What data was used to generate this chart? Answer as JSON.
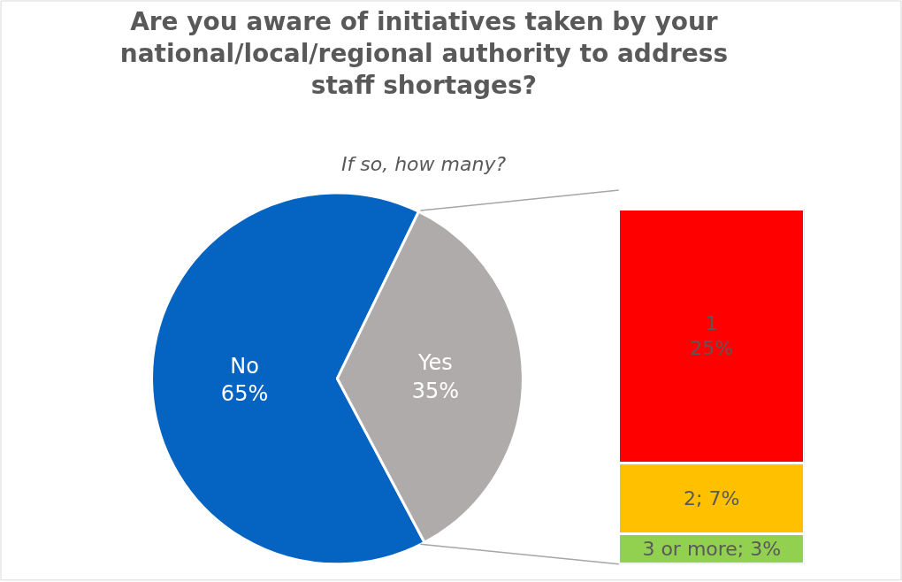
{
  "chart_data": [
    {
      "type": "pie",
      "title": "Are you aware of initiatives taken by your national/local/regional authority to address staff shortages?",
      "subtitle": "If so, how many?",
      "categories": [
        "No",
        "Yes"
      ],
      "values": [
        65,
        35
      ],
      "colors": [
        "#0563c1",
        "#afabab"
      ],
      "value_labels": [
        "65%",
        "35%"
      ]
    },
    {
      "type": "bar",
      "stacked": true,
      "categories": [
        null
      ],
      "series": [
        {
          "color": "#92d050",
          "values": [
            3
          ],
          "value_labels": [
            "3 or more; 3%"
          ]
        },
        {
          "color": "#ffc000",
          "values": [
            7
          ],
          "value_labels": [
            "2; 7%"
          ]
        },
        {
          "color": "#ff0000",
          "values": [
            25
          ],
          "value_labels": [
            "1\n25%"
          ]
        }
      ]
    }
  ]
}
